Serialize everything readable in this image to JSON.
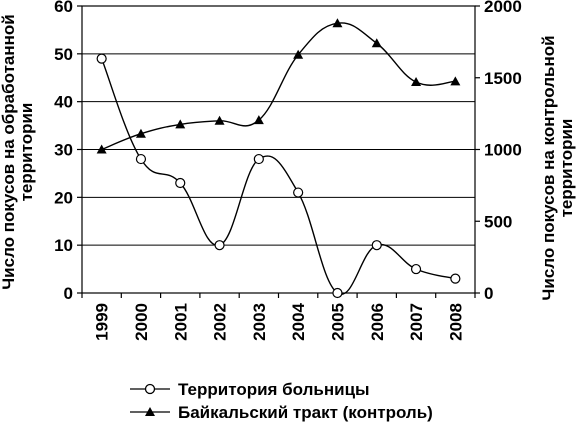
{
  "chart_data": {
    "type": "line",
    "x": [
      "1999",
      "2000",
      "2001",
      "2002",
      "2003",
      "2004",
      "2005",
      "2006",
      "2007",
      "2008"
    ],
    "series": [
      {
        "name": "Территория больницы",
        "axis": "left",
        "marker": "circle-open",
        "values": [
          49,
          28,
          23,
          10,
          28,
          21,
          0,
          10,
          5,
          3
        ]
      },
      {
        "name": "Байкальский тракт (контроль)",
        "axis": "right",
        "marker": "triangle-filled",
        "values": [
          1000,
          1110,
          1175,
          1200,
          1205,
          1660,
          1880,
          1740,
          1470,
          1475
        ]
      }
    ],
    "y_left": {
      "label_line1": "Число покусов на обработанной",
      "label_line2": "территории",
      "lim": [
        0,
        60
      ],
      "ticks": [
        "0",
        "10",
        "20",
        "30",
        "40",
        "50",
        "60"
      ]
    },
    "y_right": {
      "label_line1": "Число покусов на контрольной",
      "label_line2": "территории",
      "lim": [
        0,
        2000
      ],
      "ticks": [
        "0",
        "500",
        "1000",
        "1500",
        "2000"
      ]
    },
    "grid": true,
    "legend_position": "bottom",
    "colors": {
      "line": "#000000",
      "background": "#ffffff"
    }
  }
}
